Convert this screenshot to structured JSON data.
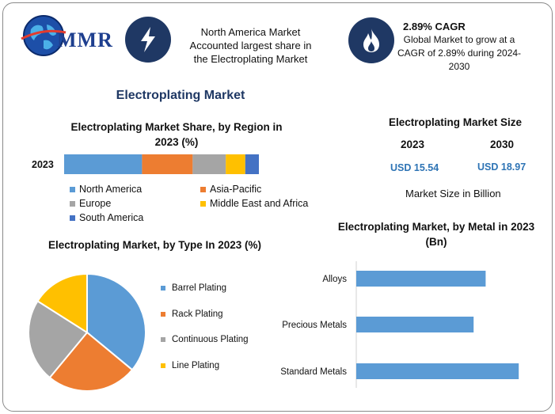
{
  "logo": {
    "text": "MMR"
  },
  "header": {
    "highlight_text": "North America Market Accounted largest share in the Electroplating Market",
    "cagr_title": "2.89% CAGR",
    "cagr_text": "Global Market to grow at a CAGR of 2.89% during 2024-2030"
  },
  "icons": {
    "lightning": "lightning-bolt-icon",
    "flame": "flame-icon",
    "globe": "globe-icon"
  },
  "colors": {
    "navy": "#1f3864",
    "north_america": "#5b9bd5",
    "asia_pacific": "#ed7d31",
    "europe": "#a5a5a5",
    "mea": "#ffc000",
    "south_america": "#4472c4",
    "barrel": "#5b9bd5",
    "rack": "#ed7d31",
    "continuous": "#a5a5a5",
    "line": "#ffc000",
    "metal_bar": "#5b9bd5",
    "value_blue": "#2e74b5"
  },
  "main_title": "Electroplating Market",
  "market_size": {
    "title": "Electroplating Market Size",
    "years": [
      "2023",
      "2030"
    ],
    "values": [
      "USD 15.54",
      "USD 18.97"
    ],
    "unit": "Market Size in Billion"
  },
  "chart_data": [
    {
      "type": "bar",
      "orientation": "horizontal-stacked",
      "title": "Electroplating Market Share, by Region in 2023 (%)",
      "categories": [
        "2023"
      ],
      "series": [
        {
          "name": "North America",
          "values": [
            40
          ]
        },
        {
          "name": "Asia-Pacific",
          "values": [
            26
          ]
        },
        {
          "name": "Europe",
          "values": [
            17
          ]
        },
        {
          "name": "Middle East and Africa",
          "values": [
            10
          ]
        },
        {
          "name": "South America",
          "values": [
            7
          ]
        }
      ],
      "xlim": [
        0,
        100
      ],
      "legend": "bottom"
    },
    {
      "type": "pie",
      "title": "Electroplating Market, by Type In 2023 (%)",
      "labels": [
        "Barrel Plating",
        "Rack Plating",
        "Continuous Plating",
        "Line Plating"
      ],
      "values": [
        36,
        25,
        23,
        16
      ],
      "legend": "right"
    },
    {
      "type": "bar",
      "orientation": "horizontal",
      "title": "Electroplating Market, by Metal in 2023 (Bn)",
      "categories": [
        "Alloys",
        "Precious Metals",
        "Standard Metals"
      ],
      "values": [
        4.3,
        3.9,
        5.4
      ],
      "xlim": [
        0,
        8
      ]
    }
  ]
}
